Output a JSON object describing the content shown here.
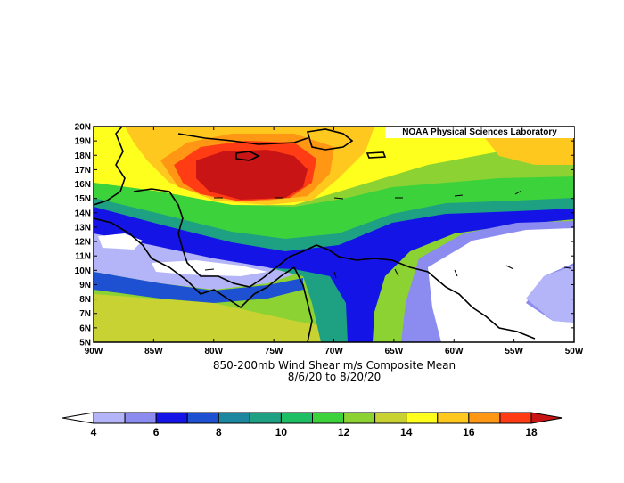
{
  "map": {
    "credit": "NOAA Physical Sciences Laboratory",
    "title": "850-200mb Wind Shear m/s Composite Mean",
    "date_range": "8/6/20  to 8/20/20",
    "lat_labels": [
      "5N",
      "6N",
      "7N",
      "8N",
      "9N",
      "10N",
      "11N",
      "12N",
      "13N",
      "14N",
      "15N",
      "16N",
      "17N",
      "18N",
      "19N",
      "20N"
    ],
    "lon_labels": [
      "90W",
      "85W",
      "80W",
      "75W",
      "70W",
      "65W",
      "60W",
      "55W",
      "50W"
    ]
  },
  "colorbar": {
    "colors": [
      "#ffffff",
      "#b4b4f8",
      "#8c8cf0",
      "#1414e6",
      "#1e50d2",
      "#1e87a0",
      "#1ea082",
      "#1ebe64",
      "#3cd23c",
      "#8cd232",
      "#c8d232",
      "#ffff1e",
      "#ffc81e",
      "#ff9614",
      "#ff3c14",
      "#c81414"
    ],
    "tick_labels": [
      "4",
      "6",
      "8",
      "10",
      "12",
      "14",
      "16",
      "18"
    ]
  }
}
